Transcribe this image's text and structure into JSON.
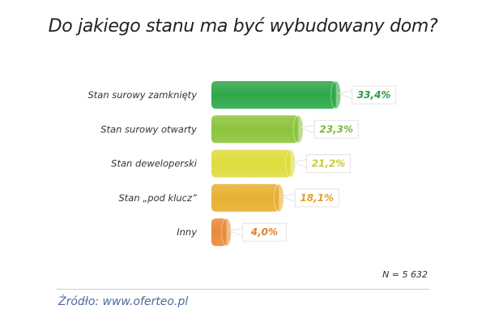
{
  "chart_data": {
    "type": "bar",
    "orientation": "horizontal",
    "title": "Do jakiego stanu ma być wybudowany dom?",
    "categories": [
      "Stan surowy zamknięty",
      "Stan surowy otwarty",
      "Stan deweloperski",
      "Stan „pod klucz”",
      "Inny"
    ],
    "values": [
      33.4,
      23.3,
      21.2,
      18.1,
      4.0
    ],
    "value_labels": [
      "33,4%",
      "23,3%",
      "21,2%",
      "18,1%",
      "4,0%"
    ],
    "unit": "%",
    "colors": [
      "#2ea84a",
      "#8cc43c",
      "#dedc3c",
      "#e8b032",
      "#e88a3a"
    ],
    "label_colors": [
      "#2a9a44",
      "#7ab838",
      "#c9c82e",
      "#dea02c",
      "#e47e2c"
    ],
    "grid": false,
    "note": "N = 5 632",
    "source": "Źródło: www.oferteo.pl"
  }
}
